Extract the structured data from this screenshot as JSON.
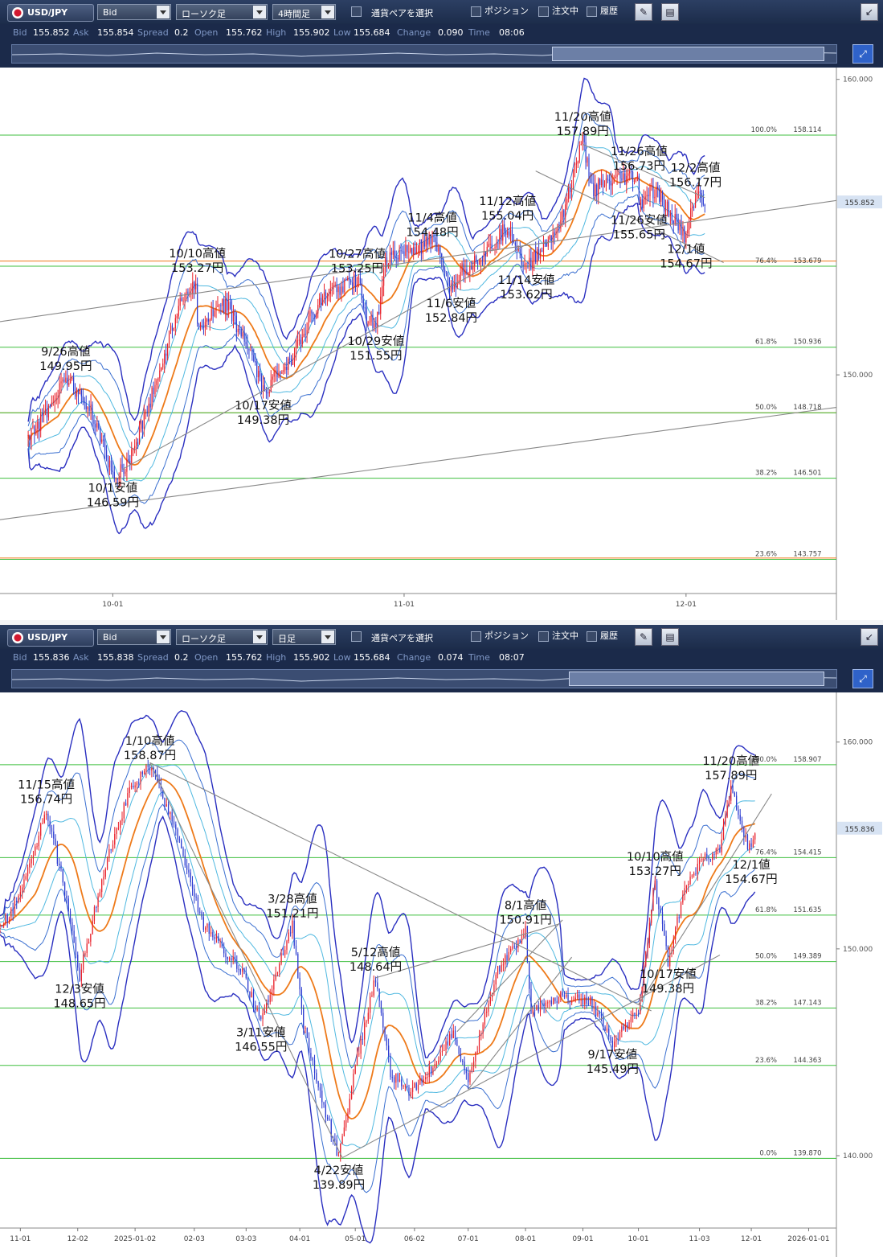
{
  "panels": [
    {
      "toolbar": {
        "symbol": "USD/JPY",
        "price_type": "Bid",
        "chart_type": "ローソク足",
        "timeframe": "4時間足",
        "pair_select_label": "通貨ペアを選択",
        "position_label": "ポジション",
        "orders_label": "注文中",
        "history_label": "履歴"
      },
      "quote": {
        "bid_label": "Bid",
        "bid": "155.852",
        "ask_label": "Ask",
        "ask": "155.854",
        "spread_label": "Spread",
        "spread": "0.2",
        "open_label": "Open",
        "open": "155.762",
        "high_label": "High",
        "high": "155.902",
        "low_label": "Low",
        "low": "155.684",
        "change_label": "Change",
        "change": "0.090",
        "time_label": "Time",
        "time": "08:06"
      },
      "navigator_window": [
        0.655,
        0.985
      ]
    },
    {
      "toolbar": {
        "symbol": "USD/JPY",
        "price_type": "Bid",
        "chart_type": "ローソク足",
        "timeframe": "日足",
        "pair_select_label": "通貨ペアを選択",
        "position_label": "ポジション",
        "orders_label": "注文中",
        "history_label": "履歴"
      },
      "quote": {
        "bid_label": "Bid",
        "bid": "155.836",
        "ask_label": "Ask",
        "ask": "155.838",
        "spread_label": "Spread",
        "spread": "0.2",
        "open_label": "Open",
        "open": "155.762",
        "high_label": "High",
        "high": "155.902",
        "low_label": "Low",
        "low": "155.684",
        "change_label": "Change",
        "change": "0.074",
        "time_label": "Time",
        "time": "08:07"
      },
      "navigator_window": [
        0.675,
        0.985
      ]
    }
  ],
  "colors": {
    "candle_up": "#e8202a",
    "candle_down": "#2a3ad0",
    "bollinger_outer": "#2a2fc0",
    "bollinger_mid": "#3a6fd0",
    "bollinger_inner": "#4fb8e0",
    "moving_average": "#ee7a1a",
    "fib_line": "#3fbf3f",
    "horizontal_orange": "#ee7a1a",
    "trendline": "#888888",
    "price_label_bg": "#d7e3f3"
  },
  "chart_data": [
    {
      "type": "candlestick",
      "title": "USD/JPY 4時間足",
      "ylim": [
        142.6,
        160.4
      ],
      "y_ticks": [
        {
          "value": 160.0,
          "label": "160.000"
        },
        {
          "value": 150.0,
          "label": "150.000"
        }
      ],
      "x_ticks": [
        {
          "date": "2025-10-01",
          "label": "10-01"
        },
        {
          "date": "2025-11-01",
          "label": "11-01"
        },
        {
          "date": "2025-12-01",
          "label": "12-01"
        }
      ],
      "current_price": {
        "value": 155.852,
        "label": "155.852"
      },
      "fib_levels": [
        {
          "pct": "100.0%",
          "value": 158.114,
          "label": "158.114"
        },
        {
          "pct": "76.4%",
          "value": 153.679,
          "label": "153.679"
        },
        {
          "pct": "61.8%",
          "value": 150.936,
          "label": "150.936"
        },
        {
          "pct": "50.0%",
          "value": 148.718,
          "label": "148.718"
        },
        {
          "pct": "38.2%",
          "value": 146.501,
          "label": "146.501"
        },
        {
          "pct": "23.6%",
          "value": 143.757,
          "label": "143.757"
        }
      ],
      "horizontal_lines": [
        153.85,
        153.679,
        148.718,
        143.8
      ],
      "path": [
        [
          "2025-09-22",
          147.8
        ],
        [
          "2025-09-24",
          148.8
        ],
        [
          "2025-09-26",
          149.95
        ],
        [
          "2025-09-29",
          148.6
        ],
        [
          "2025-09-30",
          147.5
        ],
        [
          "2025-10-01",
          146.59
        ],
        [
          "2025-10-02",
          146.8
        ],
        [
          "2025-10-03",
          147.3
        ],
        [
          "2025-10-06",
          150.1
        ],
        [
          "2025-10-08",
          152.4
        ],
        [
          "2025-10-10",
          153.27
        ],
        [
          "2025-10-10",
          151.5
        ],
        [
          "2025-10-13",
          152.4
        ],
        [
          "2025-10-15",
          151.2
        ],
        [
          "2025-10-16",
          150.4
        ],
        [
          "2025-10-17",
          149.38
        ],
        [
          "2025-10-20",
          150.6
        ],
        [
          "2025-10-22",
          151.9
        ],
        [
          "2025-10-24",
          152.8
        ],
        [
          "2025-10-27",
          153.25
        ],
        [
          "2025-10-28",
          152.0
        ],
        [
          "2025-10-29",
          151.55
        ],
        [
          "2025-10-30",
          153.9
        ],
        [
          "2025-11-04",
          154.48
        ],
        [
          "2025-11-05",
          153.9
        ],
        [
          "2025-11-06",
          152.84
        ],
        [
          "2025-11-07",
          153.5
        ],
        [
          "2025-11-10",
          154.2
        ],
        [
          "2025-11-12",
          155.04
        ],
        [
          "2025-11-14",
          153.62
        ],
        [
          "2025-11-17",
          154.8
        ],
        [
          "2025-11-18",
          155.6
        ],
        [
          "2025-11-20",
          157.89
        ],
        [
          "2025-11-21",
          156.3
        ],
        [
          "2025-11-24",
          156.6
        ],
        [
          "2025-11-26",
          156.73
        ],
        [
          "2025-11-26",
          155.65
        ],
        [
          "2025-11-27",
          156.2
        ],
        [
          "2025-11-28",
          156.1
        ],
        [
          "2025-12-01",
          154.67
        ],
        [
          "2025-12-02",
          156.17
        ],
        [
          "2025-12-03",
          155.85
        ]
      ],
      "annotations": [
        {
          "date": "2025-09-26",
          "label": "9/26高値",
          "price": "149.95円",
          "value": 149.95,
          "pos": "above"
        },
        {
          "date": "2025-10-01",
          "label": "10/1安値",
          "price": "146.59円",
          "value": 146.59,
          "pos": "below"
        },
        {
          "date": "2025-10-10",
          "label": "10/10高値",
          "price": "153.27円",
          "value": 153.27,
          "pos": "above"
        },
        {
          "date": "2025-10-17",
          "label": "10/17安値",
          "price": "149.38円",
          "value": 149.38,
          "pos": "below"
        },
        {
          "date": "2025-10-27",
          "label": "10/27高値",
          "price": "153.25円",
          "value": 153.25,
          "pos": "above"
        },
        {
          "date": "2025-10-29",
          "label": "10/29安値",
          "price": "151.55円",
          "value": 151.55,
          "pos": "below"
        },
        {
          "date": "2025-11-04",
          "label": "11/4高値",
          "price": "154.48円",
          "value": 154.48,
          "pos": "above"
        },
        {
          "date": "2025-11-06",
          "label": "11/6安値",
          "price": "152.84円",
          "value": 152.84,
          "pos": "below"
        },
        {
          "date": "2025-11-12",
          "label": "11/12高値",
          "price": "155.04円",
          "value": 155.04,
          "pos": "above"
        },
        {
          "date": "2025-11-14",
          "label": "11/14安値",
          "price": "153.62円",
          "value": 153.62,
          "pos": "below"
        },
        {
          "date": "2025-11-20",
          "label": "11/20高値",
          "price": "157.89円",
          "value": 157.89,
          "pos": "above"
        },
        {
          "date": "2025-11-26",
          "label": "11/26高値",
          "price": "156.73円",
          "value": 156.73,
          "pos": "above"
        },
        {
          "date": "2025-11-26",
          "label": "11/26安値",
          "price": "155.65円",
          "value": 155.65,
          "pos": "below"
        },
        {
          "date": "2025-12-01",
          "label": "12/1値",
          "price": "154.67円",
          "value": 154.67,
          "pos": "below"
        },
        {
          "date": "2025-12-02",
          "label": "12/2高値",
          "price": "156.17円",
          "value": 156.17,
          "pos": "above"
        }
      ],
      "trendlines": [
        [
          [
            "2025-09-19",
            151.8
          ],
          [
            "2025-12-17",
            155.9
          ]
        ],
        [
          [
            "2025-09-19",
            145.1
          ],
          [
            "2025-12-17",
            148.9
          ]
        ],
        [
          [
            "2025-10-02",
            146.8
          ],
          [
            "2025-11-19",
            155.3
          ]
        ],
        [
          [
            "2025-11-20",
            157.8
          ],
          [
            "2025-12-03",
            156.0
          ]
        ],
        [
          [
            "2025-11-15",
            156.9
          ],
          [
            "2025-12-05",
            153.8
          ]
        ]
      ],
      "x_range": [
        "2025-09-19",
        "2025-12-17"
      ]
    },
    {
      "type": "candlestick",
      "title": "USD/JPY 日足",
      "ylim": [
        136.5,
        162.4
      ],
      "y_ticks": [
        {
          "value": 160.0,
          "label": "160.000"
        },
        {
          "value": 150.0,
          "label": "150.000"
        },
        {
          "value": 140.0,
          "label": "140.000"
        }
      ],
      "x_ticks": [
        {
          "date": "2024-11-01",
          "label": "11-01"
        },
        {
          "date": "2024-12-02",
          "label": "12-02"
        },
        {
          "date": "2025-01-02",
          "label": "2025-01-02"
        },
        {
          "date": "2025-02-03",
          "label": "02-03"
        },
        {
          "date": "2025-03-03",
          "label": "03-03"
        },
        {
          "date": "2025-04-01",
          "label": "04-01"
        },
        {
          "date": "2025-05-01",
          "label": "05-01"
        },
        {
          "date": "2025-06-02",
          "label": "06-02"
        },
        {
          "date": "2025-07-01",
          "label": "07-01"
        },
        {
          "date": "2025-08-01",
          "label": "08-01"
        },
        {
          "date": "2025-09-01",
          "label": "09-01"
        },
        {
          "date": "2025-10-01",
          "label": "10-01"
        },
        {
          "date": "2025-11-03",
          "label": "11-03"
        },
        {
          "date": "2025-12-01",
          "label": "12-01"
        },
        {
          "date": "2026-01-01",
          "label": "2026-01-01"
        }
      ],
      "current_price": {
        "value": 155.836,
        "label": "155.836"
      },
      "fib_levels": [
        {
          "pct": "100.0%",
          "value": 158.907,
          "label": "158.907"
        },
        {
          "pct": "76.4%",
          "value": 154.415,
          "label": "154.415"
        },
        {
          "pct": "61.8%",
          "value": 151.635,
          "label": "151.635"
        },
        {
          "pct": "50.0%",
          "value": 149.389,
          "label": "149.389"
        },
        {
          "pct": "38.2%",
          "value": 147.143,
          "label": "147.143"
        },
        {
          "pct": "23.6%",
          "value": 144.363,
          "label": "144.363"
        },
        {
          "pct": "0.0%",
          "value": 139.87,
          "label": "139.870"
        }
      ],
      "horizontal_lines": [],
      "path": [
        [
          "2024-10-21",
          151.0
        ],
        [
          "2024-11-01",
          152.5
        ],
        [
          "2024-11-15",
          156.74
        ],
        [
          "2024-11-25",
          152.8
        ],
        [
          "2024-12-03",
          148.65
        ],
        [
          "2024-12-18",
          154.5
        ],
        [
          "2024-12-30",
          157.6
        ],
        [
          "2025-01-10",
          158.87
        ],
        [
          "2025-01-24",
          155.8
        ],
        [
          "2025-02-07",
          151.3
        ],
        [
          "2025-02-28",
          149.0
        ],
        [
          "2025-03-11",
          146.55
        ],
        [
          "2025-03-28",
          151.21
        ],
        [
          "2025-04-03",
          146.3
        ],
        [
          "2025-04-09",
          144.0
        ],
        [
          "2025-04-22",
          139.89
        ],
        [
          "2025-05-01",
          144.3
        ],
        [
          "2025-05-12",
          148.64
        ],
        [
          "2025-05-20",
          144.0
        ],
        [
          "2025-05-30",
          143.0
        ],
        [
          "2025-06-13",
          144.4
        ],
        [
          "2025-06-23",
          146.0
        ],
        [
          "2025-07-01",
          143.5
        ],
        [
          "2025-07-16",
          148.8
        ],
        [
          "2025-08-01",
          150.91
        ],
        [
          "2025-08-04",
          147.0
        ],
        [
          "2025-08-20",
          147.7
        ],
        [
          "2025-09-05",
          147.5
        ],
        [
          "2025-09-17",
          145.49
        ],
        [
          "2025-10-01",
          147.0
        ],
        [
          "2025-10-10",
          153.27
        ],
        [
          "2025-10-17",
          149.38
        ],
        [
          "2025-10-27",
          153.2
        ],
        [
          "2025-11-04",
          154.3
        ],
        [
          "2025-11-14",
          154.7
        ],
        [
          "2025-11-20",
          157.89
        ],
        [
          "2025-11-26",
          155.7
        ],
        [
          "2025-12-01",
          154.67
        ],
        [
          "2025-12-03",
          155.84
        ]
      ],
      "annotations": [
        {
          "date": "2024-11-15",
          "label": "11/15高値",
          "price": "156.74円",
          "value": 156.74,
          "pos": "above"
        },
        {
          "date": "2024-12-03",
          "label": "12/3安値",
          "price": "148.65円",
          "value": 148.65,
          "pos": "below"
        },
        {
          "date": "2025-01-10",
          "label": "1/10高値",
          "price": "158.87円",
          "value": 158.87,
          "pos": "above"
        },
        {
          "date": "2025-03-11",
          "label": "3/11安値",
          "price": "146.55円",
          "value": 146.55,
          "pos": "below"
        },
        {
          "date": "2025-03-28",
          "label": "3/28高値",
          "price": "151.21円",
          "value": 151.21,
          "pos": "above"
        },
        {
          "date": "2025-04-22",
          "label": "4/22安値",
          "price": "139.89円",
          "value": 139.89,
          "pos": "below"
        },
        {
          "date": "2025-05-12",
          "label": "5/12高値",
          "price": "148.64円",
          "value": 148.64,
          "pos": "above"
        },
        {
          "date": "2025-08-01",
          "label": "8/1高値",
          "price": "150.91円",
          "value": 150.91,
          "pos": "above"
        },
        {
          "date": "2025-09-17",
          "label": "9/17安値",
          "price": "145.49円",
          "value": 145.49,
          "pos": "below"
        },
        {
          "date": "2025-10-10",
          "label": "10/10高値",
          "price": "153.27円",
          "value": 153.27,
          "pos": "above"
        },
        {
          "date": "2025-10-17",
          "label": "10/17安値",
          "price": "149.38円",
          "value": 149.38,
          "pos": "below"
        },
        {
          "date": "2025-11-20",
          "label": "11/20高値",
          "price": "157.89円",
          "value": 157.89,
          "pos": "above"
        },
        {
          "date": "2025-12-01",
          "label": "12/1値",
          "price": "154.67円",
          "value": 154.67,
          "pos": "below"
        }
      ],
      "trendlines": [
        [
          [
            "2025-01-10",
            159.0
          ],
          [
            "2025-10-08",
            147.0
          ]
        ],
        [
          [
            "2025-01-10",
            159.0
          ],
          [
            "2025-04-24",
            139.9
          ]
        ],
        [
          [
            "2025-04-24",
            139.9
          ],
          [
            "2025-11-14",
            149.7
          ]
        ],
        [
          [
            "2025-05-12",
            148.6
          ],
          [
            "2025-08-19",
            151.2
          ]
        ],
        [
          [
            "2025-06-25",
            146.0
          ],
          [
            "2025-08-21",
            151.4
          ]
        ],
        [
          [
            "2025-07-01",
            143.2
          ],
          [
            "2025-08-26",
            149.6
          ]
        ],
        [
          [
            "2025-10-01",
            147.3
          ],
          [
            "2025-12-12",
            157.5
          ]
        ]
      ],
      "x_range": [
        "2024-10-21",
        "2026-01-16"
      ]
    }
  ]
}
